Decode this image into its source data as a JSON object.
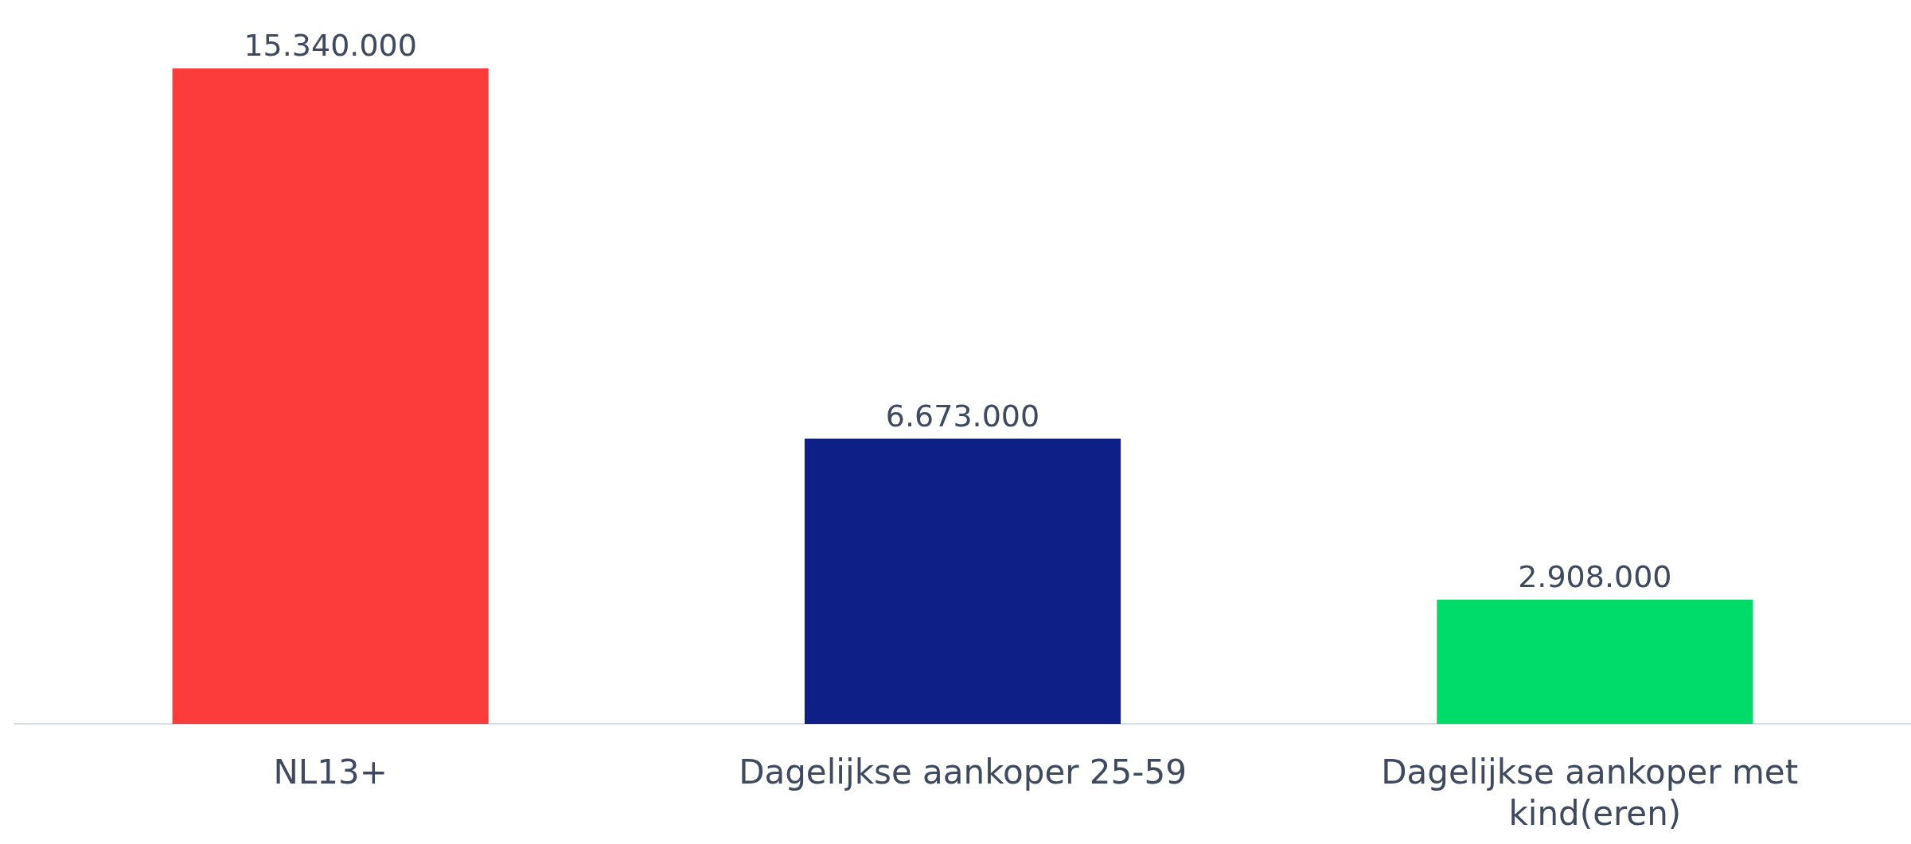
{
  "chart_data": {
    "type": "bar",
    "categories": [
      "NL13+",
      "Dagelijkse aankoper 25-59",
      "Dagelijkse aankoper met kind(eren)"
    ],
    "values": [
      15340000,
      6673000,
      2908000
    ],
    "value_labels": [
      "15.340.000",
      "6.673.000",
      "2.908.000"
    ],
    "colors": [
      "#fc3b3b",
      "#0f1f88",
      "#00dc6a"
    ]
  }
}
